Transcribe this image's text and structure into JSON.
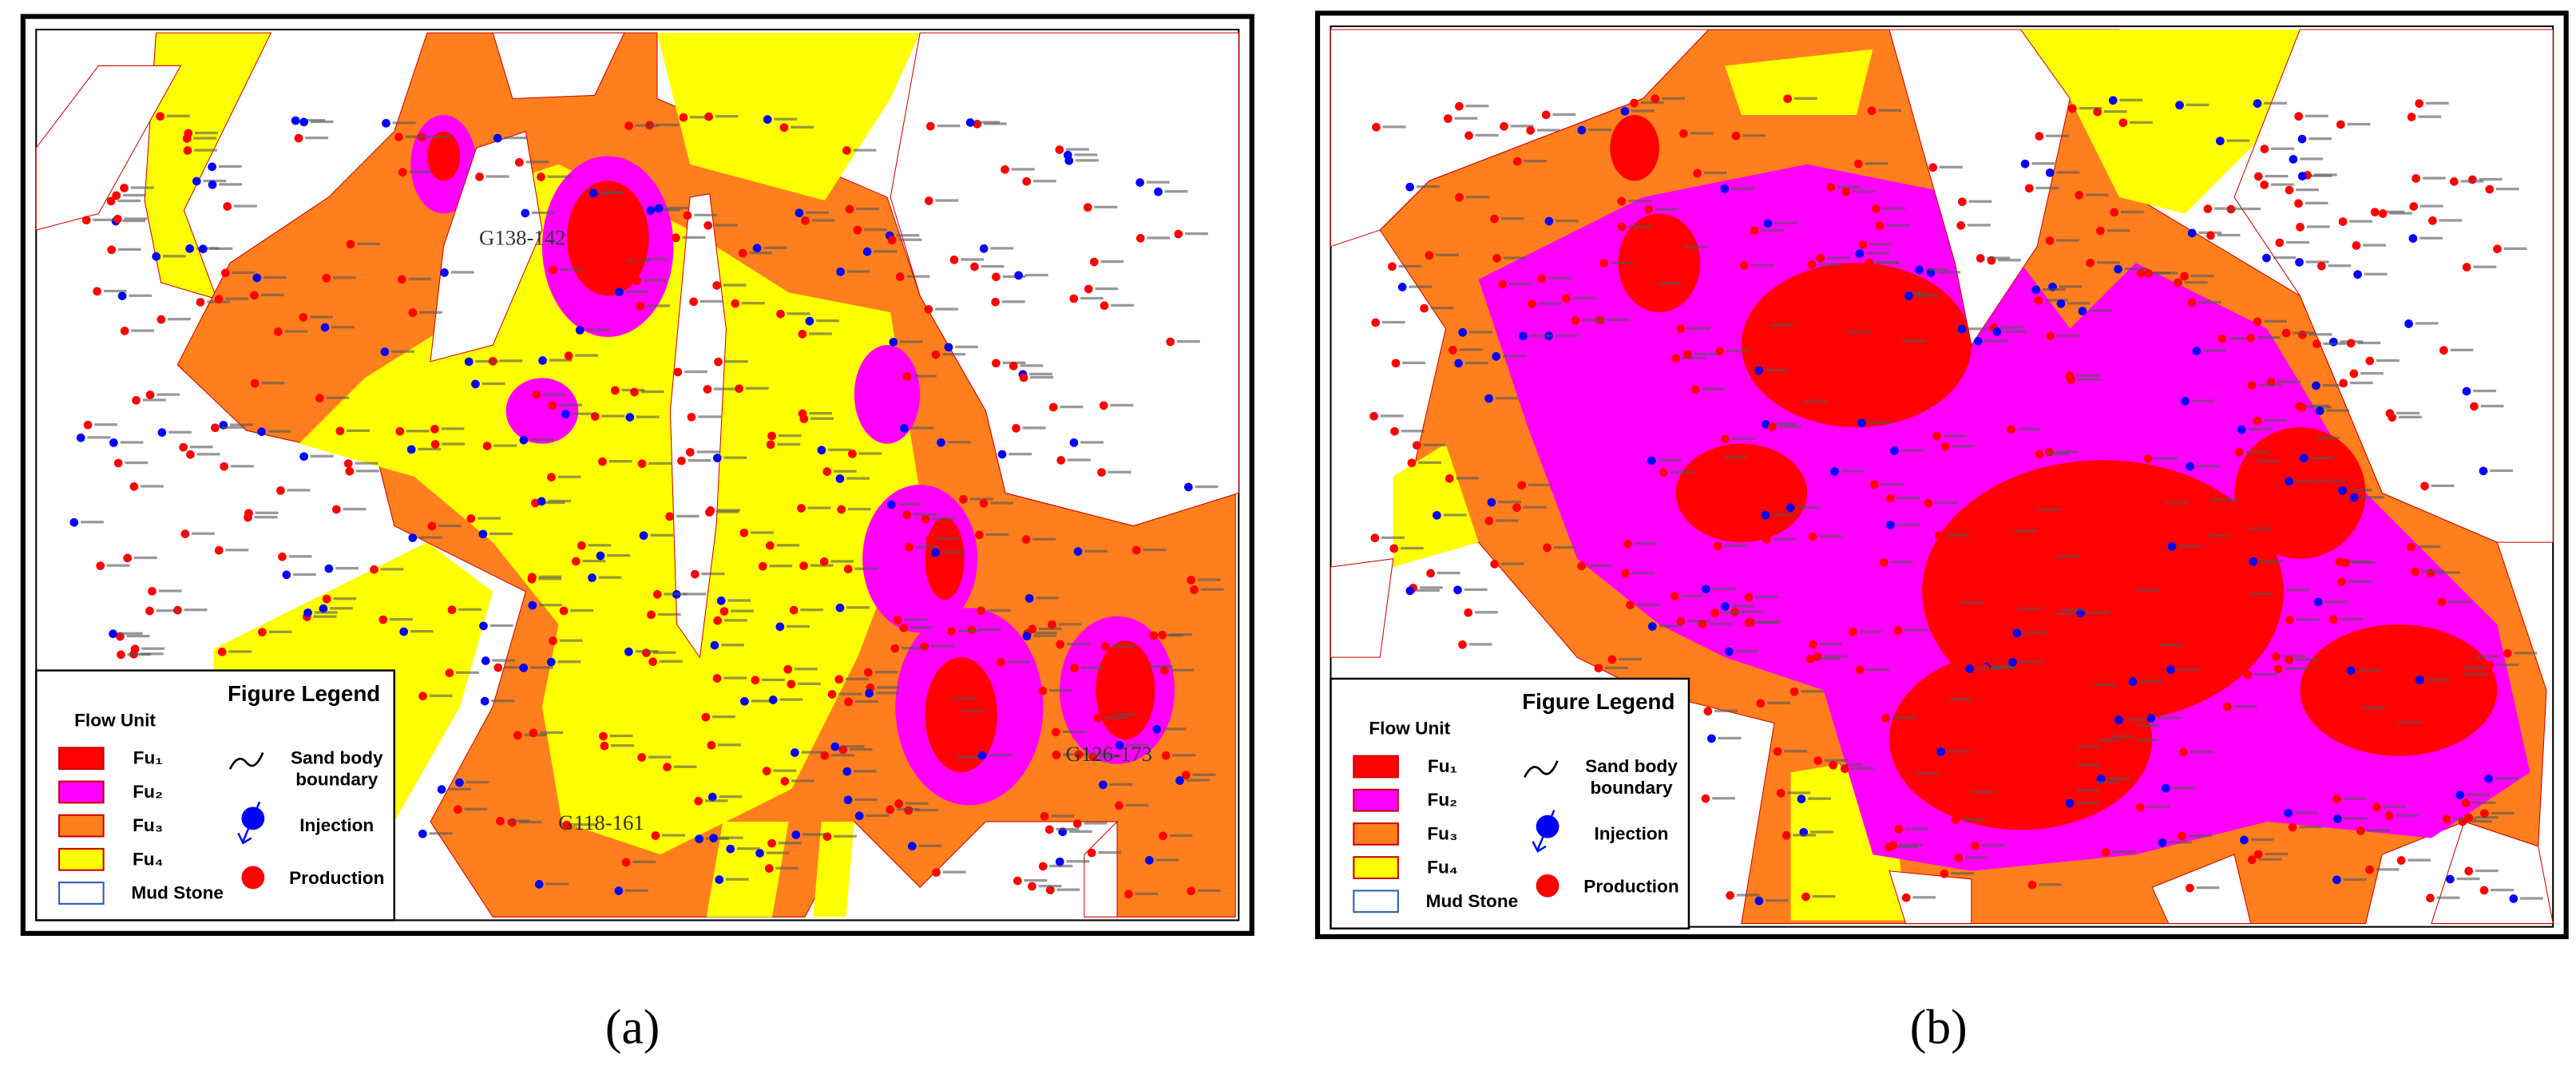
{
  "panels": [
    {
      "label": "(a)",
      "well_labels": [
        "G138-142",
        "G126-173",
        "G118-161"
      ],
      "legend": {
        "title": "Figure Legend",
        "flow_unit_heading": "Flow Unit",
        "flow_units": [
          "Fu₁",
          "Fu₂",
          "Fu₃",
          "Fu₄",
          "Mud Stone"
        ],
        "sand_body_boundary": [
          "Sand body",
          "boundary"
        ],
        "injection": "Injection",
        "production": "Production"
      }
    },
    {
      "label": "(b)",
      "legend": {
        "title": "Figure Legend",
        "flow_unit_heading": "Flow Unit",
        "flow_units": [
          "Fu₁",
          "Fu₂",
          "Fu₃",
          "Fu₄",
          "Mud Stone"
        ],
        "sand_body_boundary": [
          "Sand body",
          "boundary"
        ],
        "injection": "Injection",
        "production": "Production"
      }
    }
  ]
}
